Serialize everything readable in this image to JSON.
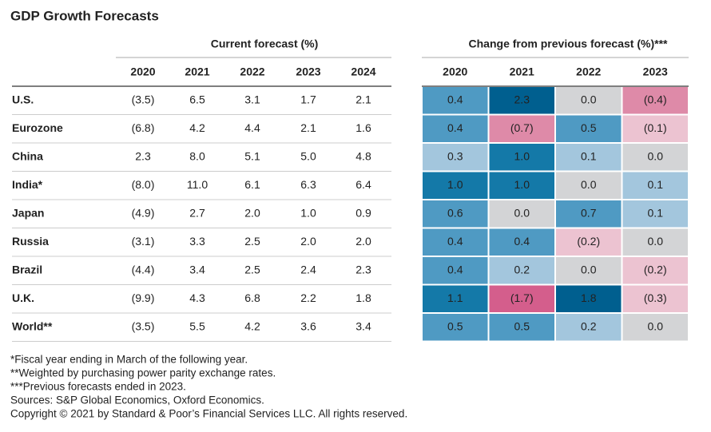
{
  "title": "GDP Growth Forecasts",
  "current": {
    "header": "Current forecast (%)",
    "columns": [
      "2020",
      "2021",
      "2022",
      "2023",
      "2024"
    ],
    "rows": [
      {
        "label": "U.S.",
        "values": [
          "(3.5)",
          "6.5",
          "3.1",
          "1.7",
          "2.1"
        ]
      },
      {
        "label": "Eurozone",
        "values": [
          "(6.8)",
          "4.2",
          "4.4",
          "2.1",
          "1.6"
        ]
      },
      {
        "label": "China",
        "values": [
          "2.3",
          "8.0",
          "5.1",
          "5.0",
          "4.8"
        ]
      },
      {
        "label": "India*",
        "values": [
          "(8.0)",
          "11.0",
          "6.1",
          "6.3",
          "6.4"
        ]
      },
      {
        "label": "Japan",
        "values": [
          "(4.9)",
          "2.7",
          "2.0",
          "1.0",
          "0.9"
        ]
      },
      {
        "label": "Russia",
        "values": [
          "(3.1)",
          "3.3",
          "2.5",
          "2.0",
          "2.0"
        ]
      },
      {
        "label": "Brazil",
        "values": [
          "(4.4)",
          "3.4",
          "2.5",
          "2.4",
          "2.3"
        ]
      },
      {
        "label": "U.K.",
        "values": [
          "(9.9)",
          "4.3",
          "6.8",
          "2.2",
          "1.8"
        ]
      },
      {
        "label": "World**",
        "values": [
          "(3.5)",
          "5.5",
          "4.2",
          "3.6",
          "3.4"
        ]
      }
    ]
  },
  "change": {
    "header": "Change from previous forecast (%)***",
    "columns": [
      "2020",
      "2021",
      "2022",
      "2023"
    ],
    "rows": [
      {
        "values": [
          "0.4",
          "2.3",
          "0.0",
          "(0.4)"
        ],
        "colors": [
          "#4f9ac3",
          "#005f8f",
          "#d3d4d6",
          "#de8aa8"
        ]
      },
      {
        "values": [
          "0.4",
          "(0.7)",
          "0.5",
          "(0.1)"
        ],
        "colors": [
          "#4f9ac3",
          "#de8aa8",
          "#4f9ac3",
          "#ecc3d1"
        ]
      },
      {
        "values": [
          "0.3",
          "1.0",
          "0.1",
          "0.0"
        ],
        "colors": [
          "#a3c6dd",
          "#1479a8",
          "#a3c6dd",
          "#d3d4d6"
        ]
      },
      {
        "values": [
          "1.0",
          "1.0",
          "0.0",
          "0.1"
        ],
        "colors": [
          "#1479a8",
          "#1479a8",
          "#d3d4d6",
          "#a3c6dd"
        ]
      },
      {
        "values": [
          "0.6",
          "0.0",
          "0.7",
          "0.1"
        ],
        "colors": [
          "#4f9ac3",
          "#d3d4d6",
          "#4f9ac3",
          "#a3c6dd"
        ]
      },
      {
        "values": [
          "0.4",
          "0.4",
          "(0.2)",
          "0.0"
        ],
        "colors": [
          "#4f9ac3",
          "#4f9ac3",
          "#ecc3d1",
          "#d3d4d6"
        ]
      },
      {
        "values": [
          "0.4",
          "0.2",
          "0.0",
          "(0.2)"
        ],
        "colors": [
          "#4f9ac3",
          "#a3c6dd",
          "#d3d4d6",
          "#ecc3d1"
        ]
      },
      {
        "values": [
          "1.1",
          "(1.7)",
          "1.8",
          "(0.3)"
        ],
        "colors": [
          "#1479a8",
          "#d45e8c",
          "#005f8f",
          "#ecc3d1"
        ]
      },
      {
        "values": [
          "0.5",
          "0.5",
          "0.2",
          "0.0"
        ],
        "colors": [
          "#4f9ac3",
          "#4f9ac3",
          "#a3c6dd",
          "#d3d4d6"
        ]
      }
    ]
  },
  "footnotes": [
    "*Fiscal year ending in March of the following year.",
    "**Weighted by purchasing power parity exchange rates.",
    "***Previous forecasts ended in 2023.",
    "Sources: S&P Global Economics, Oxford Economics.",
    "Copyright © 2021 by Standard & Poor’s Financial Services LLC. All rights reserved."
  ]
}
